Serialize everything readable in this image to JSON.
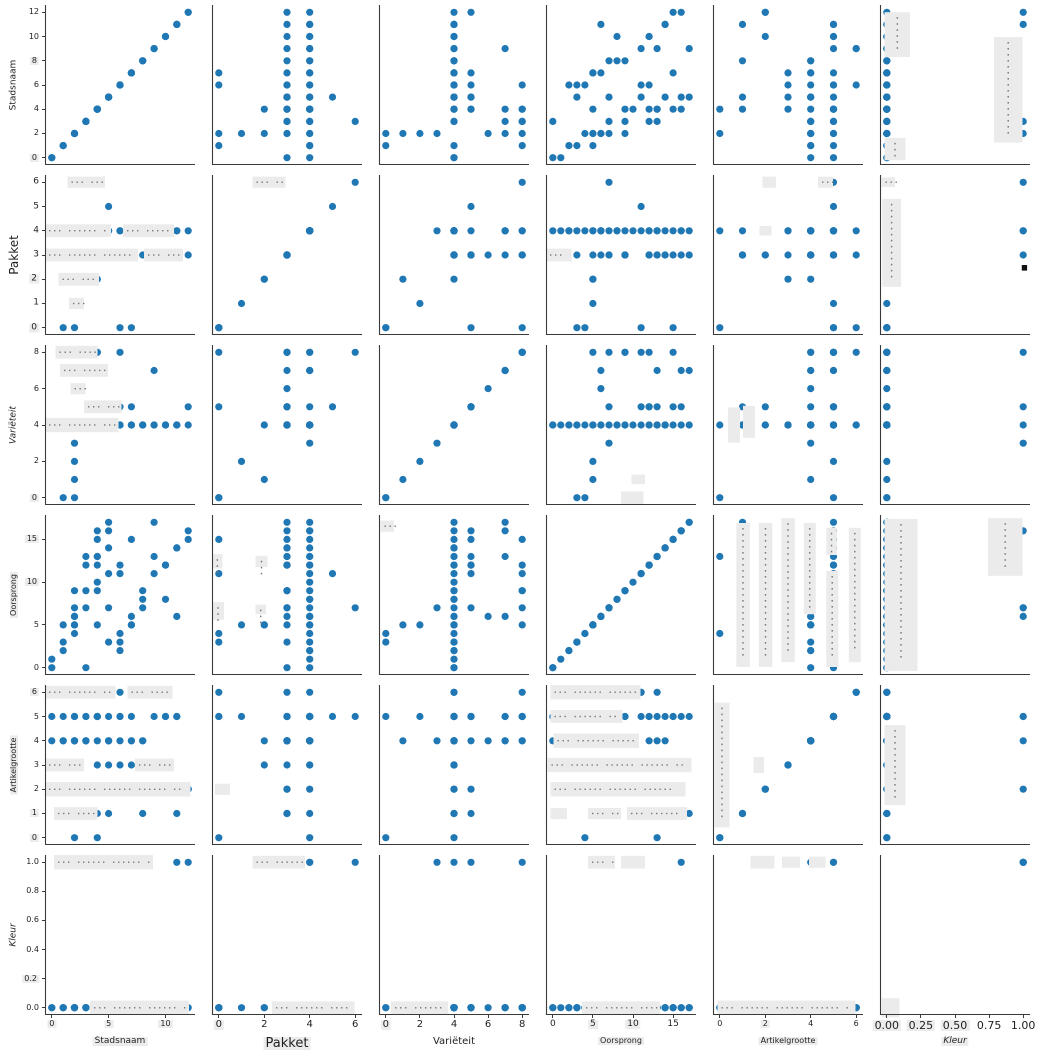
{
  "figure": {
    "kind": "seaborn-style scatter plot matrix (pairplot), 6 x 6 panels, no title, no legend",
    "background": "#ffffff",
    "point_color": "#1f77b4",
    "spine_color": "#3a3a3a",
    "redaction_color": "#ebebeb",
    "redaction_dot_color": "#777777",
    "dark_mark_color": "#111111",
    "text_color": "#1f1f1f",
    "tick_highlight_bg": "#ececec"
  },
  "chart_data": {
    "type": "scatter",
    "subtype": "scatter_matrix",
    "title": "",
    "grid": false,
    "legend": null,
    "variables": [
      {
        "name": "Stadsnaam",
        "min": -0.6,
        "max": 12.6,
        "x_label_hl": true,
        "y_label_hl": false,
        "x_ticks": [
          {
            "t": "0",
            "v": 0,
            "hl": true
          },
          {
            "t": "5",
            "v": 5,
            "hl": true
          },
          {
            "t": "10",
            "v": 10,
            "hl": true
          }
        ],
        "y_ticks": [
          {
            "t": "0",
            "v": 0,
            "hl": true
          },
          {
            "t": "2",
            "v": 2,
            "hl": false
          },
          {
            "t": "4",
            "v": 4,
            "hl": false
          },
          {
            "t": "6",
            "v": 6,
            "hl": false
          },
          {
            "t": "8",
            "v": 8,
            "hl": true
          },
          {
            "t": "10",
            "v": 10,
            "hl": false
          },
          {
            "t": "12",
            "v": 12,
            "hl": false
          }
        ]
      },
      {
        "name": "Pakket",
        "min": -0.3,
        "max": 6.3,
        "x_label_hl": true,
        "y_label_hl": false,
        "x_ticks": [
          {
            "t": "0",
            "v": 0,
            "hl": true
          },
          {
            "t": "2",
            "v": 2,
            "hl": false
          },
          {
            "t": "4",
            "v": 4,
            "hl": false
          },
          {
            "t": "6",
            "v": 6,
            "hl": false
          }
        ],
        "y_ticks": [
          {
            "t": "0",
            "v": 0,
            "hl": true
          },
          {
            "t": "1",
            "v": 1,
            "hl": false
          },
          {
            "t": "2",
            "v": 2,
            "hl": true
          },
          {
            "t": "3",
            "v": 3,
            "hl": false
          },
          {
            "t": "4",
            "v": 4,
            "hl": false
          },
          {
            "t": "5",
            "v": 5,
            "hl": false
          },
          {
            "t": "6",
            "v": 6,
            "hl": false
          }
        ]
      },
      {
        "name": "Variëteit",
        "min": -0.4,
        "max": 8.4,
        "x_label_hl": false,
        "y_label_hl": false,
        "x_ticks": [
          {
            "t": "0",
            "v": 0,
            "hl": true
          },
          {
            "t": "2",
            "v": 2,
            "hl": false
          },
          {
            "t": "4",
            "v": 4,
            "hl": false
          },
          {
            "t": "6",
            "v": 6,
            "hl": false
          },
          {
            "t": "8",
            "v": 8,
            "hl": false
          }
        ],
        "y_ticks": [
          {
            "t": "0",
            "v": 0,
            "hl": true
          },
          {
            "t": "2",
            "v": 2,
            "hl": false
          },
          {
            "t": "4",
            "v": 4,
            "hl": false
          },
          {
            "t": "6",
            "v": 6,
            "hl": false
          },
          {
            "t": "8",
            "v": 8,
            "hl": false
          }
        ]
      },
      {
        "name": "Oorsprong",
        "min": -0.85,
        "max": 17.85,
        "x_label_hl": true,
        "y_label_hl": true,
        "x_ticks": [
          {
            "t": "0",
            "v": 0,
            "hl": false
          },
          {
            "t": "5",
            "v": 5,
            "hl": true
          },
          {
            "t": "10",
            "v": 10,
            "hl": true
          },
          {
            "t": "15",
            "v": 15,
            "hl": false
          }
        ],
        "y_ticks": [
          {
            "t": "0",
            "v": 0,
            "hl": false
          },
          {
            "t": "5",
            "v": 5,
            "hl": false
          },
          {
            "t": "10",
            "v": 10,
            "hl": true
          },
          {
            "t": "15",
            "v": 15,
            "hl": true
          }
        ]
      },
      {
        "name": "Artikelgrootte",
        "min": -0.3,
        "max": 6.3,
        "x_label_hl": true,
        "y_label_hl": true,
        "x_ticks": [
          {
            "t": "0",
            "v": 0,
            "hl": false
          },
          {
            "t": "2",
            "v": 2,
            "hl": true
          },
          {
            "t": "4",
            "v": 4,
            "hl": false
          },
          {
            "t": "6",
            "v": 6,
            "hl": false
          }
        ],
        "y_ticks": [
          {
            "t": "0",
            "v": 0,
            "hl": true
          },
          {
            "t": "1",
            "v": 1,
            "hl": true
          },
          {
            "t": "2",
            "v": 2,
            "hl": false
          },
          {
            "t": "3",
            "v": 3,
            "hl": false
          },
          {
            "t": "4",
            "v": 4,
            "hl": false
          },
          {
            "t": "5",
            "v": 5,
            "hl": false
          },
          {
            "t": "6",
            "v": 6,
            "hl": true
          }
        ]
      },
      {
        "name": "Kleur",
        "min": -0.05,
        "max": 1.05,
        "x_label_hl": true,
        "y_label_hl": false,
        "x_ticks": [
          {
            "t": "0.00",
            "v": 0,
            "hl": true
          },
          {
            "t": "0.25",
            "v": 0.25,
            "hl": true
          },
          {
            "t": "0.50",
            "v": 0.5,
            "hl": true
          },
          {
            "t": "0.75",
            "v": 0.75,
            "hl": false
          },
          {
            "t": "1.00",
            "v": 1,
            "hl": false
          }
        ],
        "y_ticks": [
          {
            "t": "0.0",
            "v": 0,
            "hl": false
          },
          {
            "t": "0.2",
            "v": 0.2,
            "hl": true
          },
          {
            "t": "0.4",
            "v": 0.4,
            "hl": false
          },
          {
            "t": "0.6",
            "v": 0.6,
            "hl": false
          },
          {
            "t": "0.8",
            "v": 0.8,
            "hl": false
          },
          {
            "t": "1.0",
            "v": 1,
            "hl": false
          }
        ]
      }
    ],
    "columns": [
      "Stadsnaam",
      "Pakket",
      "Variëteit",
      "Oorsprong",
      "Artikelgrootte",
      "Kleur"
    ],
    "records": [
      [
        0,
        4,
        4,
        1,
        5,
        0
      ],
      [
        0,
        3,
        4,
        0,
        4,
        0
      ],
      [
        1,
        0,
        0,
        3,
        5,
        0
      ],
      [
        1,
        4,
        4,
        2,
        4,
        0
      ],
      [
        2,
        0,
        0,
        4,
        0,
        0
      ],
      [
        2,
        2,
        1,
        5,
        4,
        0
      ],
      [
        2,
        1,
        2,
        5,
        5,
        0
      ],
      [
        2,
        4,
        3,
        7,
        4,
        1
      ],
      [
        3,
        6,
        8,
        7,
        5,
        1
      ],
      [
        3,
        3,
        4,
        9,
        4,
        0
      ],
      [
        4,
        3,
        8,
        9,
        5,
        0
      ],
      [
        4,
        4,
        4,
        10,
        4,
        0
      ],
      [
        4,
        2,
        4,
        5,
        3,
        0
      ],
      [
        4,
        3,
        5,
        12,
        1,
        0
      ],
      [
        4,
        4,
        4,
        13,
        0,
        0
      ],
      [
        5,
        5,
        5,
        11,
        5,
        0
      ],
      [
        5,
        3,
        4,
        14,
        4,
        0
      ],
      [
        5,
        4,
        4,
        16,
        3,
        0
      ],
      [
        5,
        3,
        4,
        17,
        1,
        0
      ],
      [
        6,
        0,
        8,
        11,
        6,
        0
      ],
      [
        6,
        3,
        5,
        12,
        5,
        0
      ],
      [
        6,
        4,
        4,
        2,
        4,
        0
      ],
      [
        6,
        3,
        4,
        3,
        3,
        0
      ],
      [
        7,
        0,
        5,
        15,
        5,
        0
      ],
      [
        7,
        3,
        4,
        5,
        4,
        0
      ],
      [
        7,
        4,
        4,
        6,
        3,
        0
      ],
      [
        8,
        3,
        4,
        7,
        4,
        0
      ],
      [
        8,
        4,
        4,
        8,
        1,
        0
      ],
      [
        9,
        4,
        7,
        17,
        5,
        0
      ],
      [
        9,
        3,
        4,
        13,
        6,
        0
      ],
      [
        10,
        4,
        4,
        8,
        5,
        0
      ],
      [
        10,
        3,
        4,
        12,
        2,
        0
      ],
      [
        11,
        4,
        4,
        6,
        5,
        1
      ],
      [
        11,
        3,
        4,
        14,
        1,
        0
      ],
      [
        12,
        4,
        4,
        15,
        2,
        0
      ],
      [
        12,
        3,
        5,
        16,
        2,
        1
      ],
      [
        3,
        4,
        4,
        0,
        5,
        0
      ],
      [
        5,
        4,
        4,
        3,
        4,
        0
      ],
      [
        6,
        4,
        4,
        4,
        5,
        0
      ],
      [
        7,
        4,
        4,
        5,
        4,
        0
      ],
      [
        8,
        4,
        4,
        9,
        4,
        0
      ],
      [
        9,
        4,
        4,
        11,
        6,
        0
      ],
      [
        10,
        4,
        4,
        12,
        5,
        0
      ],
      [
        11,
        4,
        4,
        14,
        5,
        0
      ],
      [
        1,
        4,
        8,
        5,
        4,
        0
      ],
      [
        2,
        3,
        8,
        9,
        5,
        0
      ],
      [
        3,
        4,
        8,
        12,
        4,
        0
      ],
      [
        4,
        3,
        8,
        15,
        5,
        0
      ],
      [
        2,
        4,
        7,
        6,
        4,
        0
      ],
      [
        3,
        3,
        7,
        13,
        4,
        0
      ],
      [
        4,
        4,
        7,
        16,
        5,
        0
      ],
      [
        5,
        3,
        5,
        7,
        4,
        0
      ],
      [
        4,
        4,
        5,
        13,
        5,
        0
      ],
      [
        2,
        3,
        6,
        6,
        4,
        0
      ]
    ],
    "redactions": [
      [
        2,
        1,
        0.15,
        0.25,
        0.955,
        0.07,
        1
      ],
      [
        2,
        1,
        0.0,
        0.44,
        0.652,
        0.08,
        1
      ],
      [
        2,
        1,
        0.52,
        0.34,
        0.652,
        0.08,
        1
      ],
      [
        2,
        1,
        0.0,
        0.62,
        0.5,
        0.08,
        1
      ],
      [
        2,
        1,
        0.66,
        0.26,
        0.5,
        0.08,
        1
      ],
      [
        2,
        1,
        0.09,
        0.27,
        0.348,
        0.08,
        1
      ],
      [
        2,
        1,
        0.16,
        0.1,
        0.197,
        0.07,
        1
      ],
      [
        3,
        1,
        0.07,
        0.28,
        0.955,
        0.08,
        1
      ],
      [
        3,
        1,
        0.1,
        0.32,
        0.841,
        0.08,
        1
      ],
      [
        3,
        1,
        0.17,
        0.1,
        0.727,
        0.07,
        1
      ],
      [
        3,
        1,
        0.26,
        0.25,
        0.614,
        0.08,
        1
      ],
      [
        3,
        1,
        0.0,
        0.49,
        0.5,
        0.09,
        1
      ],
      [
        5,
        1,
        0.0,
        0.47,
        0.955,
        0.08,
        1
      ],
      [
        5,
        1,
        0.55,
        0.3,
        0.955,
        0.08,
        1
      ],
      [
        5,
        1,
        0.0,
        0.26,
        0.5,
        0.08,
        1
      ],
      [
        5,
        1,
        0.6,
        0.26,
        0.5,
        0.08,
        1
      ],
      [
        5,
        1,
        0.0,
        0.97,
        0.348,
        0.09,
        1
      ],
      [
        5,
        1,
        0.06,
        0.29,
        0.197,
        0.08,
        1
      ],
      [
        6,
        1,
        0.06,
        0.66,
        0.955,
        0.09,
        1
      ],
      [
        6,
        1,
        0.3,
        0.66,
        0.045,
        0.09,
        1
      ],
      [
        2,
        2,
        0.27,
        0.22,
        0.955,
        0.07,
        1
      ],
      [
        4,
        2,
        0.0,
        0.07,
        0.71,
        0.09,
        1
      ],
      [
        4,
        2,
        0.0,
        0.08,
        0.4,
        0.11,
        1
      ],
      [
        4,
        2,
        0.29,
        0.08,
        0.71,
        0.07,
        1
      ],
      [
        4,
        2,
        0.29,
        0.07,
        0.41,
        0.06,
        1
      ],
      [
        5,
        2,
        0.02,
        0.1,
        0.348,
        0.07,
        0
      ],
      [
        6,
        2,
        0.27,
        0.35,
        0.955,
        0.08,
        1
      ],
      [
        6,
        2,
        0.4,
        0.55,
        0.045,
        0.08,
        1
      ],
      [
        4,
        3,
        0.01,
        0.09,
        0.93,
        0.07,
        1
      ],
      [
        6,
        3,
        0.08,
        0.38,
        0.045,
        0.08,
        1
      ],
      [
        2,
        4,
        0.0,
        0.17,
        0.5,
        0.08,
        1
      ],
      [
        3,
        4,
        0.5,
        0.15,
        0.045,
        0.08,
        0
      ],
      [
        3,
        4,
        0.57,
        0.09,
        0.16,
        0.06,
        0
      ],
      [
        5,
        4,
        0.03,
        0.6,
        0.955,
        0.09,
        1
      ],
      [
        5,
        4,
        0.03,
        0.48,
        0.803,
        0.08,
        1
      ],
      [
        5,
        4,
        0.05,
        0.57,
        0.652,
        0.09,
        1
      ],
      [
        5,
        4,
        0.01,
        0.96,
        0.5,
        0.09,
        1
      ],
      [
        5,
        4,
        0.03,
        0.9,
        0.348,
        0.09,
        1
      ],
      [
        5,
        4,
        0.03,
        0.11,
        0.197,
        0.07,
        0
      ],
      [
        5,
        4,
        0.28,
        0.22,
        0.197,
        0.07,
        1
      ],
      [
        5,
        4,
        0.54,
        0.4,
        0.197,
        0.08,
        1
      ],
      [
        6,
        4,
        0.28,
        0.18,
        0.955,
        0.08,
        1
      ],
      [
        6,
        4,
        0.5,
        0.16,
        0.955,
        0.08,
        0
      ],
      [
        6,
        4,
        0.24,
        0.52,
        0.045,
        0.08,
        1
      ],
      [
        2,
        5,
        0.33,
        0.09,
        0.955,
        0.07,
        0
      ],
      [
        2,
        5,
        0.7,
        0.1,
        0.955,
        0.07,
        1
      ],
      [
        2,
        5,
        0.31,
        0.08,
        0.652,
        0.06,
        0
      ],
      [
        3,
        5,
        0.1,
        0.08,
        0.5,
        0.22,
        0
      ],
      [
        3,
        5,
        0.2,
        0.08,
        0.52,
        0.2,
        0
      ],
      [
        4,
        5,
        0.155,
        0.09,
        0.5,
        0.9,
        1
      ],
      [
        4,
        5,
        0.305,
        0.09,
        0.5,
        0.9,
        1
      ],
      [
        4,
        5,
        0.455,
        0.09,
        0.53,
        0.9,
        1
      ],
      [
        4,
        5,
        0.605,
        0.08,
        0.665,
        0.57,
        1
      ],
      [
        4,
        5,
        0.755,
        0.08,
        0.35,
        0.6,
        1
      ],
      [
        4,
        5,
        0.755,
        0.07,
        0.835,
        0.17,
        1
      ],
      [
        4,
        5,
        0.905,
        0.08,
        0.5,
        0.84,
        1
      ],
      [
        5,
        5,
        0.01,
        0.1,
        0.5,
        0.78,
        1
      ],
      [
        5,
        5,
        0.27,
        0.07,
        0.5,
        0.1,
        0
      ],
      [
        6,
        5,
        0.25,
        0.16,
        0.955,
        0.08,
        0
      ],
      [
        6,
        5,
        0.46,
        0.12,
        0.955,
        0.07,
        0
      ],
      [
        6,
        5,
        0.64,
        0.11,
        0.955,
        0.07,
        0
      ],
      [
        6,
        5,
        0.03,
        0.92,
        0.045,
        0.09,
        1
      ],
      [
        1,
        6,
        0.03,
        0.17,
        0.815,
        0.28,
        1
      ],
      [
        1,
        6,
        0.03,
        0.14,
        0.1,
        0.14,
        1
      ],
      [
        1,
        6,
        0.76,
        0.19,
        0.47,
        0.66,
        1
      ],
      [
        2,
        6,
        0.01,
        0.09,
        0.955,
        0.06,
        1
      ],
      [
        2,
        6,
        0.015,
        0.125,
        0.576,
        0.55,
        1
      ],
      [
        2,
        6,
        0.945,
        0.035,
        0.42,
        0.035,
        2
      ],
      [
        4,
        6,
        0.03,
        0.22,
        0.5,
        0.95,
        1
      ],
      [
        4,
        6,
        0.72,
        0.23,
        0.8,
        0.36,
        1
      ],
      [
        5,
        6,
        0.03,
        0.14,
        0.5,
        0.5,
        1
      ],
      [
        6,
        6,
        0.01,
        0.12,
        0.045,
        0.12,
        0
      ]
    ]
  }
}
